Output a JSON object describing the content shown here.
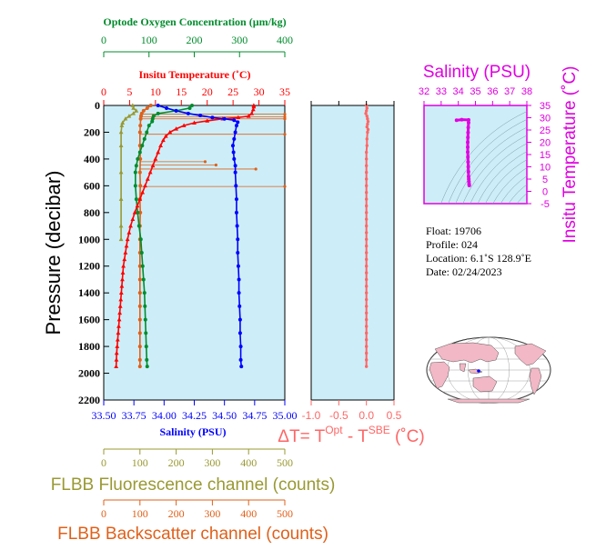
{
  "colors": {
    "oxygen": "#008c2c",
    "temperature": "#ff0000",
    "salinity": "#0000ff",
    "fluorescence": "#999933",
    "backscatter": "#e0601a",
    "delta_t": "#ff6666",
    "magenta": "#e000e0",
    "panel_bg": "#cdeef8",
    "map_land": "#f2b8c6"
  },
  "labels": {
    "oxygen_axis": "Optode Oxygen Concentration (µm/kg)",
    "temperature_axis": "Insitu Temperature (˚C)",
    "pressure_axis": "Pressure (decibar)",
    "salinity_axis": "Salinity (PSU)",
    "delta_t_prefix": "ΔT= T",
    "delta_t_sup1": "Opt",
    "delta_t_mid": " - T",
    "delta_t_sup2": "SBE",
    "delta_t_suffix": " (˚C)",
    "fluorescence_axis": "FLBB Fluorescence channel (counts)",
    "backscatter_axis": "FLBB Backscatter channel (counts)",
    "ts_salinity_title": "Salinity (PSU)",
    "ts_temperature_title": "Insitu Temperature (˚C)"
  },
  "float_info": {
    "float": "Float:  19706",
    "profile": "Profile:  024",
    "location": "Location:  6.1˚S  128.9˚E",
    "date": "Date:  02/24/2023"
  },
  "chart_data": [
    {
      "type": "line",
      "name": "profile-panel",
      "ylabel": "Pressure (decibar)",
      "ylim": [
        2200,
        0
      ],
      "y_ticks": [
        0,
        200,
        400,
        600,
        800,
        1000,
        1200,
        1400,
        1600,
        1800,
        2000,
        2200
      ],
      "axes": {
        "oxygen": {
          "label": "Optode Oxygen Concentration (µm/kg)",
          "lim": [
            0,
            400
          ],
          "ticks": [
            0,
            100,
            200,
            300,
            400
          ]
        },
        "temperature": {
          "label": "Insitu Temperature (˚C)",
          "lim": [
            0,
            35
          ],
          "ticks": [
            0,
            5,
            10,
            15,
            20,
            25,
            30,
            35
          ]
        },
        "salinity": {
          "label": "Salinity (PSU)",
          "lim": [
            33.5,
            35.0
          ],
          "ticks": [
            33.5,
            33.75,
            34.0,
            34.25,
            34.5,
            34.75,
            35.0
          ],
          "tick_labels": [
            "33.50",
            "33.75",
            "34.00",
            "34.25",
            "34.50",
            "34.75",
            "35.00"
          ]
        },
        "fluorescence": {
          "label": "FLBB Fluorescence channel (counts)",
          "lim": [
            0,
            500
          ],
          "ticks": [
            0,
            100,
            200,
            300,
            400,
            500
          ]
        },
        "backscatter": {
          "label": "FLBB Backscatter channel (counts)",
          "lim": [
            0,
            500
          ],
          "ticks": [
            0,
            100,
            200,
            300,
            400,
            500
          ]
        }
      },
      "series": [
        {
          "key": "temperature",
          "marker": "triangle",
          "points": [
            [
              29.0,
              0
            ],
            [
              29.0,
              10
            ],
            [
              28.9,
              30
            ],
            [
              28.6,
              60
            ],
            [
              28.0,
              80
            ],
            [
              26.0,
              90
            ],
            [
              23.0,
              100
            ],
            [
              20.0,
              115
            ],
            [
              17.5,
              130
            ],
            [
              15.5,
              150
            ],
            [
              14.0,
              175
            ],
            [
              12.8,
              200
            ],
            [
              12.0,
              230
            ],
            [
              11.5,
              260
            ],
            [
              11.0,
              300
            ],
            [
              10.5,
              350
            ],
            [
              10.0,
              400
            ],
            [
              9.5,
              450
            ],
            [
              9.0,
              500
            ],
            [
              8.5,
              550
            ],
            [
              8.0,
              600
            ],
            [
              7.5,
              650
            ],
            [
              7.0,
              700
            ],
            [
              6.5,
              750
            ],
            [
              6.0,
              800
            ],
            [
              5.6,
              850
            ],
            [
              5.2,
              900
            ],
            [
              4.9,
              950
            ],
            [
              4.6,
              1000
            ],
            [
              4.4,
              1050
            ],
            [
              4.2,
              1100
            ],
            [
              4.0,
              1150
            ],
            [
              3.8,
              1200
            ],
            [
              3.7,
              1250
            ],
            [
              3.6,
              1300
            ],
            [
              3.5,
              1350
            ],
            [
              3.4,
              1400
            ],
            [
              3.3,
              1450
            ],
            [
              3.2,
              1500
            ],
            [
              3.1,
              1550
            ],
            [
              3.0,
              1600
            ],
            [
              2.9,
              1650
            ],
            [
              2.8,
              1700
            ],
            [
              2.7,
              1750
            ],
            [
              2.6,
              1800
            ],
            [
              2.5,
              1850
            ],
            [
              2.45,
              1900
            ],
            [
              2.4,
              1950
            ]
          ]
        },
        {
          "key": "salinity",
          "marker": "dot",
          "points": [
            [
              33.95,
              0
            ],
            [
              34.02,
              20
            ],
            [
              34.1,
              40
            ],
            [
              34.2,
              60
            ],
            [
              34.3,
              75
            ],
            [
              34.4,
              90
            ],
            [
              34.5,
              100
            ],
            [
              34.58,
              110
            ],
            [
              34.61,
              125
            ],
            [
              34.6,
              150
            ],
            [
              34.59,
              200
            ],
            [
              34.58,
              250
            ],
            [
              34.57,
              300
            ],
            [
              34.575,
              350
            ],
            [
              34.58,
              400
            ],
            [
              34.59,
              450
            ],
            [
              34.59,
              500
            ],
            [
              34.595,
              600
            ],
            [
              34.6,
              700
            ],
            [
              34.6,
              800
            ],
            [
              34.605,
              900
            ],
            [
              34.61,
              1000
            ],
            [
              34.61,
              1100
            ],
            [
              34.615,
              1200
            ],
            [
              34.62,
              1300
            ],
            [
              34.62,
              1400
            ],
            [
              34.625,
              1500
            ],
            [
              34.63,
              1600
            ],
            [
              34.63,
              1700
            ],
            [
              34.635,
              1800
            ],
            [
              34.635,
              1900
            ],
            [
              34.64,
              1950
            ]
          ]
        },
        {
          "key": "oxygen",
          "marker": "dot",
          "points": [
            [
              195,
              0
            ],
            [
              190,
              20
            ],
            [
              160,
              40
            ],
            [
              120,
              60
            ],
            [
              110,
              80
            ],
            [
              108,
              100
            ],
            [
              107,
              120
            ],
            [
              100,
              150
            ],
            [
              95,
              200
            ],
            [
              90,
              250
            ],
            [
              85,
              300
            ],
            [
              80,
              350
            ],
            [
              75,
              400
            ],
            [
              72,
              450
            ],
            [
              70,
              500
            ],
            [
              70,
              600
            ],
            [
              72,
              700
            ],
            [
              75,
              800
            ],
            [
              78,
              900
            ],
            [
              82,
              1000
            ],
            [
              84,
              1100
            ],
            [
              86,
              1200
            ],
            [
              88,
              1300
            ],
            [
              90,
              1400
            ],
            [
              91,
              1500
            ],
            [
              92,
              1600
            ],
            [
              93,
              1700
            ],
            [
              94,
              1800
            ],
            [
              95,
              1900
            ],
            [
              96,
              1950
            ]
          ]
        },
        {
          "key": "fluorescence",
          "marker": "triangle",
          "points": [
            [
              80,
              0
            ],
            [
              82,
              20
            ],
            [
              90,
              40
            ],
            [
              82,
              60
            ],
            [
              70,
              80
            ],
            [
              60,
              100
            ],
            [
              52,
              130
            ],
            [
              50,
              150
            ],
            [
              48,
              200
            ],
            [
              48,
              300
            ],
            [
              48,
              500
            ],
            [
              48,
              700
            ],
            [
              48,
              900
            ],
            [
              48,
              1000
            ]
          ]
        },
        {
          "key": "backscatter",
          "marker": "dot",
          "points": [
            [
              130,
              0
            ],
            [
              120,
              20
            ],
            [
              110,
              40
            ],
            [
              105,
              60
            ],
            [
              103,
              80
            ],
            [
              102,
              100
            ],
            [
              101,
              150
            ],
            [
              100,
              200
            ],
            [
              100,
              300
            ],
            [
              101,
              400
            ],
            [
              100,
              500
            ],
            [
              101,
              600
            ],
            [
              100,
              700
            ],
            [
              101,
              800
            ],
            [
              100,
              900
            ],
            [
              100,
              1000
            ],
            [
              100,
              1100
            ],
            [
              100,
              1200
            ],
            [
              100,
              1300
            ],
            [
              100,
              1400
            ],
            [
              100,
              1500
            ],
            [
              100,
              1600
            ],
            [
              100,
              1700
            ],
            [
              100,
              1800
            ],
            [
              100,
              1900
            ],
            [
              100,
              1950
            ]
          ]
        }
      ],
      "backscatter_spikes": [
        {
          "pressure": 65,
          "value": 500
        },
        {
          "pressure": 85,
          "value": 500
        },
        {
          "pressure": 100,
          "value": 500
        },
        {
          "pressure": 215,
          "value": 500
        },
        {
          "pressure": 420,
          "value": 280
        },
        {
          "pressure": 445,
          "value": 310
        },
        {
          "pressure": 475,
          "value": 420
        },
        {
          "pressure": 605,
          "value": 500
        }
      ]
    },
    {
      "type": "line",
      "name": "delta-t-panel",
      "xlabel": "ΔT= TOpt - TSBE (˚C)",
      "xlim": [
        -1.0,
        0.5
      ],
      "x_ticks": [
        -1.0,
        -0.5,
        0.0,
        0.5
      ],
      "x_tick_labels": [
        "-1.0",
        "-0.5",
        "0.0",
        "0.5"
      ],
      "ylim": [
        2200,
        0
      ],
      "series": [
        {
          "key": "delta_t",
          "points": [
            [
              0.0,
              0
            ],
            [
              0.01,
              20
            ],
            [
              0.0,
              40
            ],
            [
              -0.01,
              60
            ],
            [
              0.01,
              80
            ],
            [
              0.02,
              100
            ],
            [
              0.03,
              120
            ],
            [
              0.02,
              140
            ],
            [
              0.01,
              160
            ],
            [
              0.03,
              180
            ],
            [
              0.02,
              200
            ],
            [
              0.01,
              250
            ],
            [
              0.01,
              300
            ],
            [
              0.0,
              350
            ],
            [
              0.0,
              400
            ],
            [
              0.0,
              450
            ],
            [
              0.0,
              500
            ],
            [
              0.0,
              550
            ],
            [
              0.0,
              600
            ],
            [
              0.0,
              650
            ],
            [
              0.0,
              700
            ],
            [
              0.0,
              750
            ],
            [
              0.0,
              800
            ],
            [
              0.0,
              850
            ],
            [
              0.0,
              900
            ],
            [
              0.0,
              950
            ],
            [
              0.0,
              1000
            ],
            [
              0.0,
              1050
            ],
            [
              0.0,
              1100
            ],
            [
              0.0,
              1150
            ],
            [
              0.0,
              1200
            ],
            [
              0.0,
              1250
            ],
            [
              0.0,
              1300
            ],
            [
              0.0,
              1350
            ],
            [
              0.0,
              1400
            ],
            [
              0.0,
              1450
            ],
            [
              0.0,
              1500
            ],
            [
              0.0,
              1550
            ],
            [
              0.0,
              1600
            ],
            [
              0.0,
              1650
            ],
            [
              0.0,
              1700
            ],
            [
              0.0,
              1750
            ],
            [
              0.0,
              1800
            ],
            [
              0.0,
              1850
            ],
            [
              0.0,
              1900
            ],
            [
              0.0,
              1950
            ]
          ]
        }
      ]
    },
    {
      "type": "scatter",
      "name": "ts-diagram",
      "title": "Salinity (PSU)",
      "xlim": [
        32,
        38
      ],
      "x_ticks": [
        32,
        33,
        34,
        35,
        36,
        37,
        38
      ],
      "ylabel": "Insitu Temperature (˚C)",
      "ylim": [
        -5,
        35
      ],
      "y_ticks": [
        -5,
        0,
        5,
        10,
        15,
        20,
        25,
        30,
        35
      ],
      "series": [
        {
          "key": "ts",
          "points": [
            [
              33.9,
              29
            ],
            [
              34.2,
              29.2
            ],
            [
              34.6,
              29.1
            ],
            [
              34.6,
              28
            ],
            [
              34.58,
              26
            ],
            [
              34.57,
              24
            ],
            [
              34.56,
              22
            ],
            [
              34.55,
              20
            ],
            [
              34.55,
              18
            ],
            [
              34.55,
              16
            ],
            [
              34.56,
              14
            ],
            [
              34.57,
              12
            ],
            [
              34.58,
              10
            ],
            [
              34.59,
              8
            ],
            [
              34.6,
              6
            ],
            [
              34.61,
              5
            ],
            [
              34.62,
              4
            ],
            [
              34.63,
              3
            ],
            [
              34.64,
              2.4
            ]
          ]
        }
      ]
    }
  ]
}
